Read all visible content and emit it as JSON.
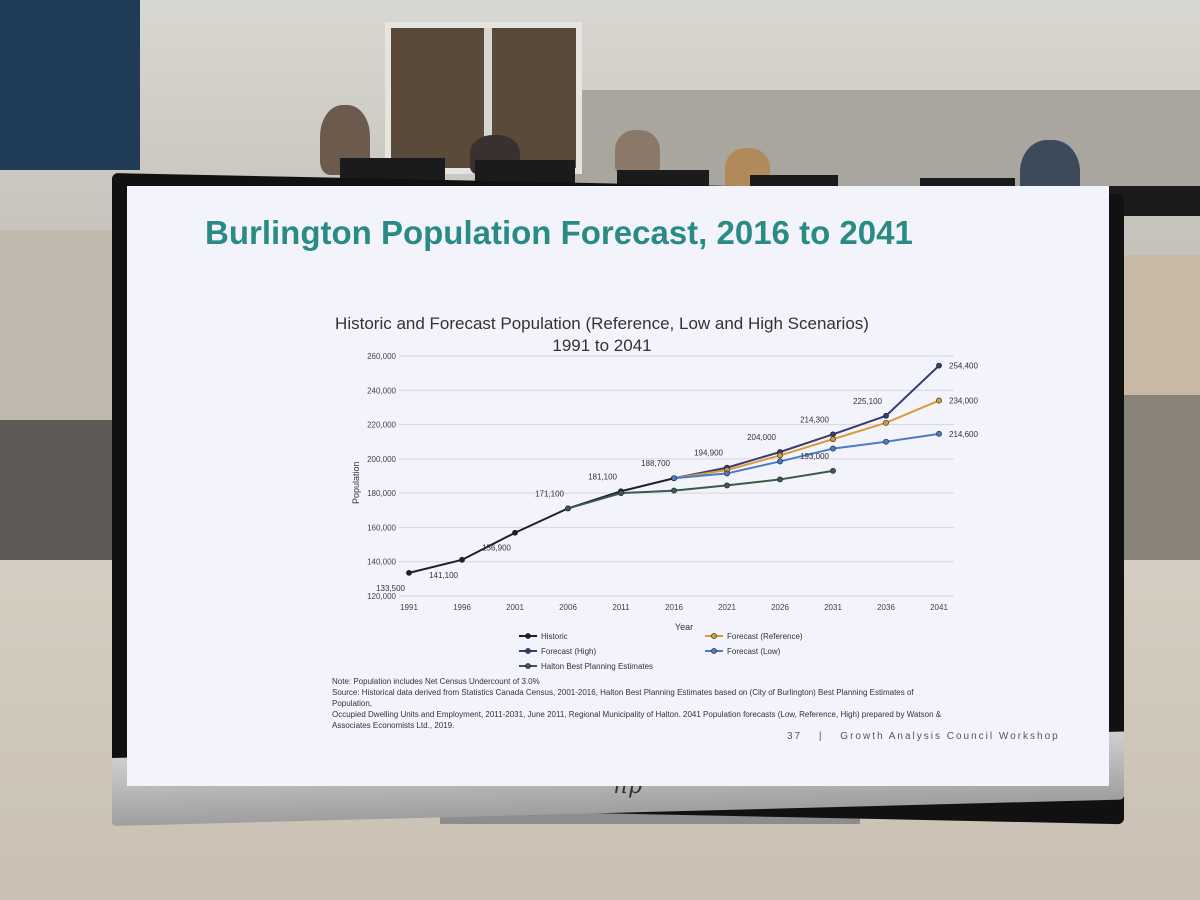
{
  "slide": {
    "title": "Burlington Population Forecast, 2016 to 2041",
    "footer_page": "37",
    "footer_separator": "|",
    "footer_text": "Growth Analysis Council Workshop",
    "note_lines": [
      "Note: Population includes Net Census Undercount of 3.0%",
      "Source: Historical data derived from Statistics Canada Census, 2001-2016, Halton Best Planning Estimates based on (City of Burlington) Best Planning Estimates of Population,",
      "Occupied Dwelling Units and Employment, 2011-2031, June 2011, Regional Municipality of Halton. 2041 Population forecasts (Low, Reference, High) prepared by Watson &",
      "Associates Economists Ltd., 2019."
    ]
  },
  "monitor": {
    "brand": "hp"
  },
  "colors": {
    "historic": "#1f1f2e",
    "high": "#3d3a6e",
    "reference": "#d99a3a",
    "low": "#4a7ac8",
    "halton": "#3a5a4a",
    "title": "#2a8a86"
  },
  "chart_data": {
    "type": "line",
    "title": "Historic and Forecast Population (Reference, Low and High Scenarios)",
    "subtitle": "1991 to 2041",
    "xlabel": "Year",
    "ylabel": "Population",
    "ylim": [
      120000,
      260000
    ],
    "yticks": [
      "120,000",
      "140,000",
      "160,000",
      "180,000",
      "200,000",
      "220,000",
      "240,000",
      "260,000"
    ],
    "x": [
      "1991",
      "1996",
      "2001",
      "2006",
      "2011",
      "2016",
      "2021",
      "2026",
      "2031",
      "2036",
      "2041"
    ],
    "grid": true,
    "legend_position": "bottom",
    "series": [
      {
        "name": "Historic",
        "key": "historic",
        "x": [
          "1991",
          "1996",
          "2001",
          "2006",
          "2011",
          "2016"
        ],
        "values": [
          133500,
          141100,
          156900,
          171100,
          181100,
          188700
        ]
      },
      {
        "name": "Forecast (High)",
        "key": "high",
        "x": [
          "2016",
          "2021",
          "2026",
          "2031",
          "2036",
          "2041"
        ],
        "values": [
          188700,
          194900,
          204000,
          214300,
          225100,
          254400
        ]
      },
      {
        "name": "Forecast (Reference)",
        "key": "reference",
        "x": [
          "2016",
          "2021",
          "2026",
          "2031",
          "2036",
          "2041"
        ],
        "values": [
          188700,
          193500,
          202000,
          211500,
          221000,
          234000
        ]
      },
      {
        "name": "Forecast (Low)",
        "key": "low",
        "x": [
          "2016",
          "2021",
          "2026",
          "2031",
          "2036",
          "2041"
        ],
        "values": [
          188700,
          191500,
          198500,
          206000,
          210000,
          214600
        ]
      },
      {
        "name": "Halton Best Planning Estimates",
        "key": "halton",
        "x": [
          "2006",
          "2011",
          "2016",
          "2021",
          "2026",
          "2031"
        ],
        "values": [
          171100,
          180000,
          181500,
          184500,
          188000,
          193000
        ]
      }
    ],
    "data_labels": [
      {
        "x": "1991",
        "text": "133,500",
        "value": 133500
      },
      {
        "x": "1996",
        "text": "141,100",
        "value": 141100
      },
      {
        "x": "2001",
        "text": "156,900",
        "value": 156900
      },
      {
        "x": "2006",
        "text": "171,100",
        "value": 171100
      },
      {
        "x": "2011",
        "text": "181,100",
        "value": 181100
      },
      {
        "x": "2016",
        "text": "188,700",
        "value": 188700
      },
      {
        "x": "2021",
        "text": "194,900",
        "value": 194900
      },
      {
        "x": "2026",
        "text": "204,000",
        "value": 204000
      },
      {
        "x": "2031",
        "text": "214,300",
        "value": 214300
      },
      {
        "x": "2036",
        "text": "225,100",
        "value": 225100
      },
      {
        "x": "2031",
        "text": "193,000",
        "value": 193000
      },
      {
        "x": "2041",
        "text": "254,400",
        "value": 254400
      },
      {
        "x": "2041",
        "text": "234,000",
        "value": 234000
      },
      {
        "x": "2041",
        "text": "214,600",
        "value": 214600
      }
    ],
    "legend": [
      {
        "name": "Historic",
        "key": "historic"
      },
      {
        "name": "Forecast (Reference)",
        "key": "reference"
      },
      {
        "name": "Forecast (High)",
        "key": "high"
      },
      {
        "name": "Forecast (Low)",
        "key": "low"
      },
      {
        "name": "Halton Best Planning Estimates",
        "key": "halton"
      }
    ]
  }
}
